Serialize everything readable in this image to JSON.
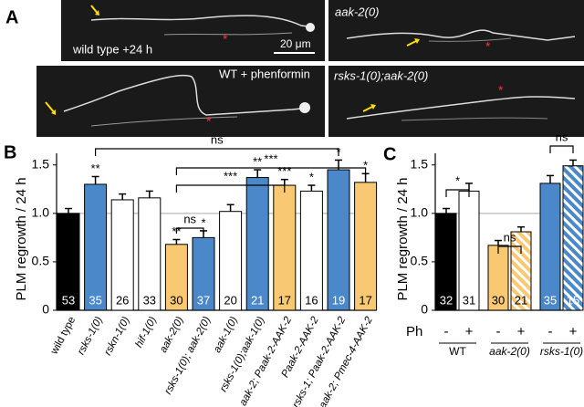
{
  "panels": [
    "A",
    "B",
    "C"
  ],
  "panel_a": {
    "images": [
      {
        "label": "wild type +24 h",
        "scale_bar": "20 μm"
      },
      {
        "label": "aak-2(0)"
      },
      {
        "label": "WT + phenformin"
      },
      {
        "label": "rsks-1(0);aak-2(0)"
      }
    ]
  },
  "chart_data": [
    {
      "type": "bar",
      "ylabel": "PLM regrowth / 24 h",
      "categories": [
        "wild type",
        "rsks-1(0)",
        "rskn-1(0)",
        "hif-1(0)",
        "aak-2(0)",
        "rsks-1(0); aak-2(0)",
        "aak-1(0)",
        "rsks-1(0);aak-1(0)",
        "aak-2; Paak-2-AAK-2",
        "Paak-2-AAK-2",
        "rsks-1; Paak-2-AAK-2",
        "aak-2; Pmec-4-AAK-2"
      ],
      "values": [
        1.0,
        1.3,
        1.14,
        1.16,
        0.68,
        0.75,
        1.02,
        1.37,
        1.29,
        1.23,
        1.45,
        1.32
      ],
      "errors": [
        0.05,
        0.08,
        0.06,
        0.07,
        0.05,
        0.07,
        0.07,
        0.08,
        0.06,
        0.06,
        0.1,
        0.09
      ],
      "colors": [
        "#000000",
        "#4a88c9",
        "#ffffff",
        "#ffffff",
        "#f8c873",
        "#4a88c9",
        "#ffffff",
        "#4a88c9",
        "#f8c873",
        "#ffffff",
        "#4a88c9",
        "#f8c873"
      ],
      "counts": [
        53,
        35,
        26,
        33,
        30,
        37,
        20,
        21,
        17,
        16,
        19,
        17
      ],
      "significance": [
        null,
        "**",
        null,
        null,
        "**",
        "*",
        null,
        "**",
        "***",
        "*",
        "*",
        "*"
      ],
      "brackets": [
        {
          "from": 1,
          "to": 10,
          "label": "ns"
        },
        {
          "from": 4,
          "to": 11,
          "label": "***"
        },
        {
          "from": 4,
          "to": 8,
          "label": "***"
        },
        {
          "from": 4,
          "to": 5,
          "label": "ns"
        }
      ],
      "ylim": [
        0,
        1.62
      ],
      "yticks": [
        0,
        0.5,
        {
          "value": 1,
          "label": "1.0"
        },
        1.5
      ],
      "refline": 1
    },
    {
      "type": "bar",
      "ylabel": "PLM regrowth / 24 h",
      "x_row_label": "Ph",
      "categories": [
        "-",
        "+",
        "-",
        "+",
        "-",
        "+"
      ],
      "groups": [
        {
          "label": "WT",
          "from": 0,
          "to": 1
        },
        {
          "label": "aak-2(0)",
          "from": 2,
          "to": 3
        },
        {
          "label": "rsks-1(0)",
          "from": 4,
          "to": 5
        }
      ],
      "values": [
        1.0,
        1.23,
        0.67,
        0.81,
        1.31,
        1.49
      ],
      "errors": [
        0.05,
        0.08,
        0.05,
        0.05,
        0.08,
        0.06
      ],
      "colors": [
        "#000000",
        "#ffffff",
        "#f8c873",
        "#f8c873",
        "#4a88c9",
        "#4a88c9"
      ],
      "hatch": [
        false,
        false,
        false,
        true,
        false,
        true
      ],
      "counts": [
        32,
        31,
        30,
        21,
        35,
        15
      ],
      "brackets": [
        {
          "from": 0,
          "to": 1,
          "label": "*"
        },
        {
          "from": 2,
          "to": 3,
          "label": "ns"
        },
        {
          "from": 4,
          "to": 5,
          "label": "ns"
        }
      ],
      "ylim": [
        0,
        1.62
      ],
      "yticks": [
        0,
        0.5,
        {
          "value": 1,
          "label": "1.0"
        },
        1.5
      ],
      "refline": 1
    }
  ]
}
